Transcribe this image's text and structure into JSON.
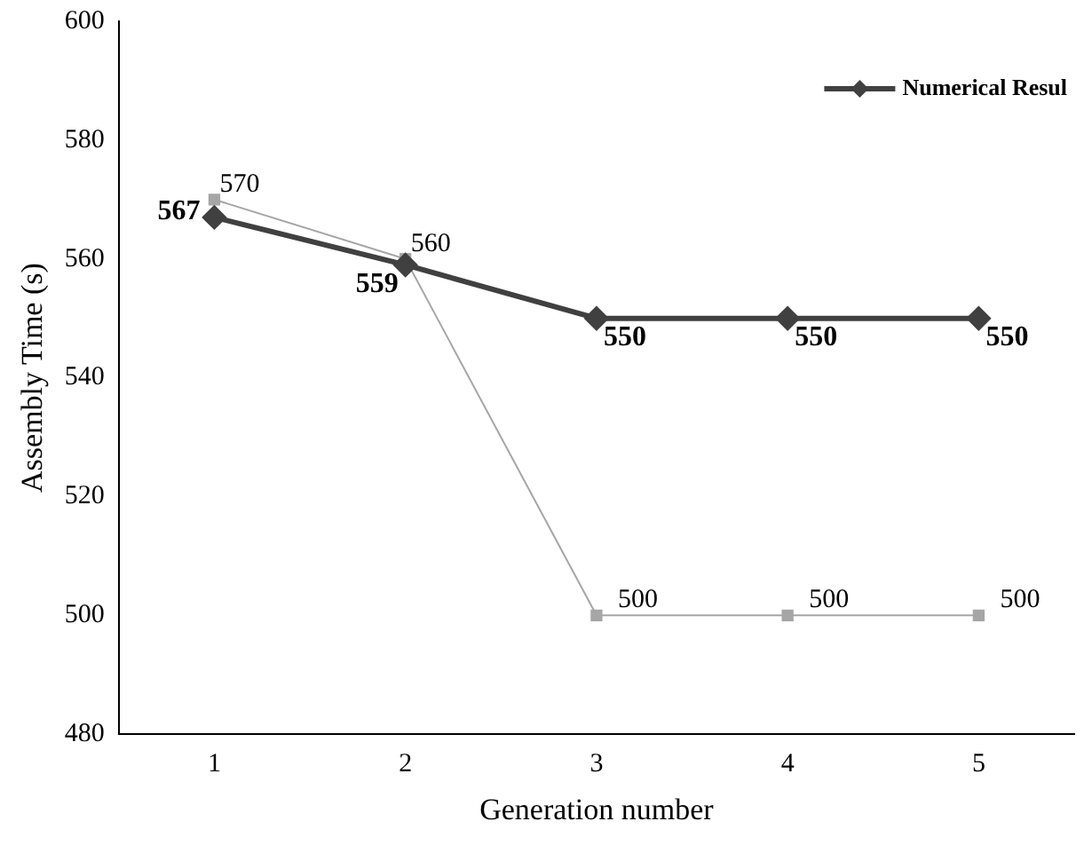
{
  "chart_data": {
    "type": "line",
    "xlabel": "Generation number",
    "ylabel": "Assembly Time (s)",
    "categories": [
      "1",
      "2",
      "3",
      "4",
      "5"
    ],
    "series": [
      {
        "name": "Numerical Resul",
        "color": "#404040",
        "values": [
          567,
          559,
          550,
          550,
          550
        ],
        "marker": "diamond"
      },
      {
        "color": "#a6a6a6",
        "values": [
          570,
          560,
          500,
          500,
          500
        ],
        "marker": "square"
      }
    ],
    "ylim": [
      480,
      600
    ],
    "yticks": [
      480,
      500,
      520,
      540,
      560,
      580,
      600
    ],
    "grid": false,
    "legend": "top right",
    "data_labels": true
  }
}
